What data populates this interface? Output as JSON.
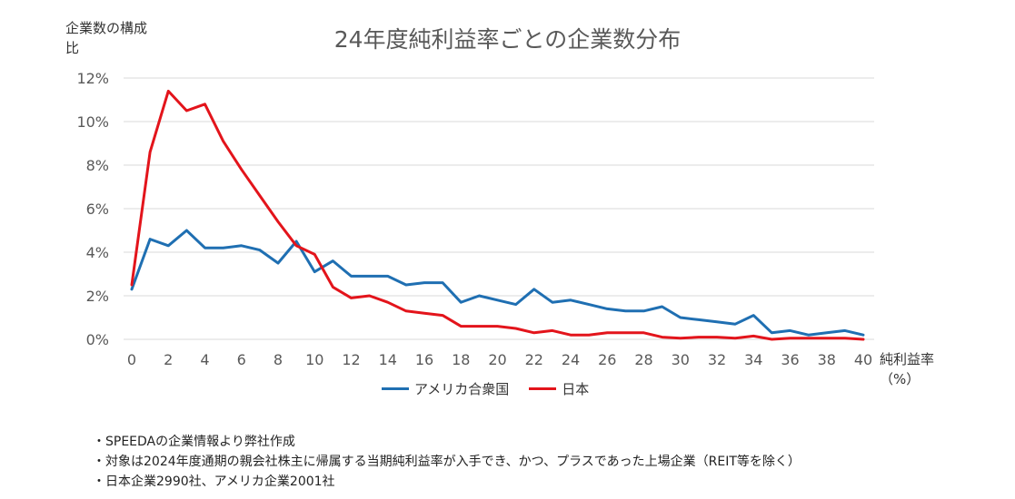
{
  "chart_data": {
    "type": "line",
    "title": "24年度純利益率ごとの企業数分布",
    "ylabel": "企業数の構成比",
    "xlabel": "純利益率（%）",
    "x": [
      0,
      1,
      2,
      3,
      4,
      5,
      6,
      7,
      8,
      9,
      10,
      11,
      12,
      13,
      14,
      15,
      16,
      17,
      18,
      19,
      20,
      21,
      22,
      23,
      24,
      25,
      26,
      27,
      28,
      29,
      30,
      31,
      32,
      33,
      34,
      35,
      36,
      37,
      38,
      39,
      40
    ],
    "xticks": [
      "0",
      "2",
      "4",
      "6",
      "8",
      "10",
      "12",
      "14",
      "16",
      "18",
      "20",
      "22",
      "24",
      "26",
      "28",
      "30",
      "32",
      "34",
      "36",
      "38",
      "40"
    ],
    "yticks": [
      "0%",
      "2%",
      "4%",
      "6%",
      "8%",
      "10%",
      "12%"
    ],
    "ylim": [
      0,
      12
    ],
    "xlim": [
      0,
      40
    ],
    "grid": "horizontal",
    "legend": "bottom",
    "series": [
      {
        "name": "アメリカ合衆国",
        "color": "#1f6fb2",
        "values": [
          2.3,
          4.6,
          4.3,
          5.0,
          4.2,
          4.2,
          4.3,
          4.1,
          3.5,
          4.5,
          3.1,
          3.6,
          2.9,
          2.9,
          2.9,
          2.5,
          2.6,
          2.6,
          1.7,
          2.0,
          1.8,
          1.6,
          2.3,
          1.7,
          1.8,
          1.6,
          1.4,
          1.3,
          1.3,
          1.5,
          1.0,
          0.9,
          0.8,
          0.7,
          1.1,
          0.3,
          0.4,
          0.2,
          0.3,
          0.4,
          0.2
        ]
      },
      {
        "name": "日本",
        "color": "#e3141b",
        "values": [
          2.5,
          8.6,
          11.4,
          10.5,
          10.8,
          9.1,
          7.8,
          6.6,
          5.4,
          4.3,
          3.9,
          2.4,
          1.9,
          2.0,
          1.7,
          1.3,
          1.2,
          1.1,
          0.6,
          0.6,
          0.6,
          0.5,
          0.3,
          0.4,
          0.2,
          0.2,
          0.3,
          0.3,
          0.3,
          0.1,
          0.05,
          0.1,
          0.1,
          0.05,
          0.15,
          0.0,
          0.05,
          0.05,
          0.05,
          0.05,
          0.0
        ]
      }
    ]
  },
  "notes": [
    "・SPEEDAの企業情報より弊社作成",
    "・対象は2024年度通期の親会社株主に帰属する当期純利益率が入手でき、かつ、プラスであった上場企業（REIT等を除く）",
    "・日本企業2990社、アメリカ企業2001社"
  ]
}
